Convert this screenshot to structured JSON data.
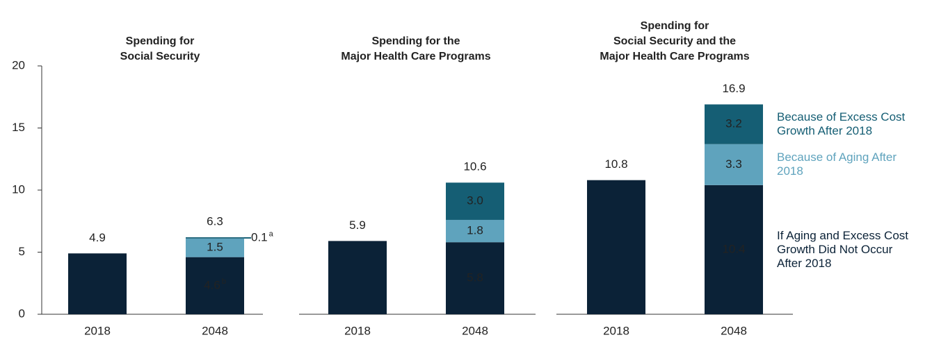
{
  "chart_data": [
    {
      "type": "stacked-bar",
      "title": "Spending for\nSocial Security",
      "categories": [
        "2018",
        "2048"
      ],
      "totals": [
        4.9,
        6.3
      ],
      "ylim": [
        0,
        20
      ],
      "yticks": [
        0,
        5,
        10,
        15,
        20
      ],
      "series": [
        {
          "color": "#0b2237",
          "values": [
            4.9,
            4.6
          ],
          "notes": [
            null,
            "b"
          ]
        },
        {
          "color": "#5fa3bd",
          "values": [
            null,
            1.5
          ]
        },
        {
          "color": "#155e74",
          "values": [
            null,
            0.1
          ],
          "notes": [
            null,
            "a"
          ]
        }
      ]
    },
    {
      "type": "stacked-bar",
      "title": "Spending for the\nMajor Health Care Programs",
      "categories": [
        "2018",
        "2048"
      ],
      "totals": [
        5.9,
        10.6
      ],
      "ylim": [
        0,
        20
      ],
      "series": [
        {
          "color": "#0b2237",
          "values": [
            5.9,
            5.8
          ]
        },
        {
          "color": "#5fa3bd",
          "values": [
            null,
            1.8
          ]
        },
        {
          "color": "#155e74",
          "values": [
            null,
            3.0
          ],
          "value_labels": [
            null,
            "3.0"
          ]
        }
      ]
    },
    {
      "type": "stacked-bar",
      "title": "Spending for\nSocial Security and the\nMajor Health Care Programs",
      "categories": [
        "2018",
        "2048"
      ],
      "totals": [
        10.8,
        16.9
      ],
      "ylim": [
        0,
        20
      ],
      "series": [
        {
          "name": "If Aging and Excess Cost Growth Did Not Occur After 2018",
          "color": "#0b2237",
          "values": [
            10.8,
            10.4
          ]
        },
        {
          "name": "Because of Aging After 2018",
          "color": "#5fa3bd",
          "values": [
            null,
            3.3
          ]
        },
        {
          "name": "Because of Excess Cost Growth After 2018",
          "color": "#155e74",
          "values": [
            null,
            3.2
          ]
        }
      ]
    }
  ]
}
